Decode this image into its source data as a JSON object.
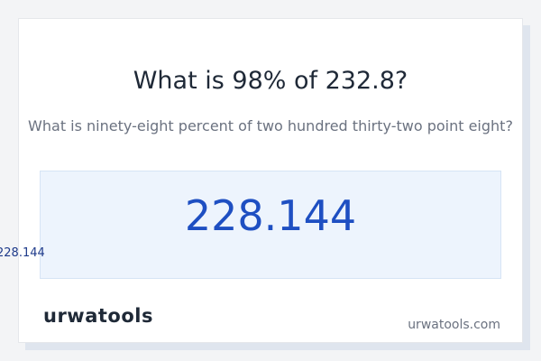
{
  "header": {
    "title": "What is 98% of 232.8?",
    "subtitle": "What is ninety-eight percent of two hundred thirty-two point eight?"
  },
  "result": {
    "value": "228.144"
  },
  "footer": {
    "logo": "urwatools",
    "url": "urwatools.com"
  }
}
